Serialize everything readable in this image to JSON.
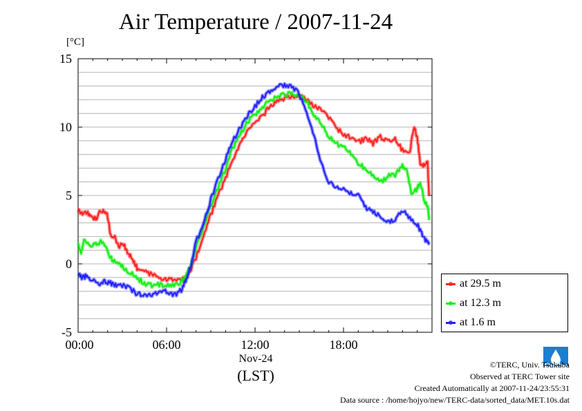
{
  "header": {
    "title": "Air Temperature / 2007-11-24",
    "unit": "[°C]"
  },
  "xaxis": {
    "date_label": "Nov-24",
    "tz_label": "(LST)"
  },
  "legend": [
    {
      "label": "at 29.5 m",
      "color": "#ff2020"
    },
    {
      "label": "at 12.3 m",
      "color": "#10ee10"
    },
    {
      "label": "at 1.6 m",
      "color": "#2020ff"
    }
  ],
  "credits": {
    "copyright": "©TERC, Univ. Tsukuba",
    "site": "Observed at TERC Tower site",
    "created": "Created Automatically at 2007-11-24/23:55:31",
    "source": "Data source : /home/hojyo/new/TERC-data/sorted_data/MET.10s.dat"
  },
  "chart_data": {
    "type": "line",
    "title": "Air Temperature / 2007-11-24",
    "ylabel": "[°C]",
    "xlabel": "Nov-24 (LST)",
    "xlim": [
      0,
      24
    ],
    "ylim": [
      -5,
      15
    ],
    "x_ticks": [
      0,
      6,
      12,
      18
    ],
    "x_tick_labels": [
      "00:00",
      "06:00",
      "12:00",
      "18:00"
    ],
    "y_ticks": [
      -5,
      0,
      5,
      10,
      15
    ],
    "y_tick_labels": [
      "-5",
      "0",
      "5",
      "10",
      "15"
    ],
    "grid": true,
    "legend_position": "right",
    "series": [
      {
        "name": "at 29.5 m",
        "color": "#ff2020",
        "points": [
          [
            0,
            3.9
          ],
          [
            0.3,
            3.7
          ],
          [
            0.6,
            3.8
          ],
          [
            0.9,
            3.4
          ],
          [
            1.2,
            3.3
          ],
          [
            1.5,
            3.8
          ],
          [
            1.8,
            3.8
          ],
          [
            2.0,
            3.5
          ],
          [
            2.2,
            2.1
          ],
          [
            2.5,
            1.9
          ],
          [
            2.8,
            1.3
          ],
          [
            3.1,
            1.4
          ],
          [
            3.4,
            0.8
          ],
          [
            3.7,
            0.3
          ],
          [
            4.0,
            -0.3
          ],
          [
            4.5,
            -0.6
          ],
          [
            5.0,
            -0.8
          ],
          [
            5.5,
            -1.0
          ],
          [
            6.0,
            -1.1
          ],
          [
            6.5,
            -1.2
          ],
          [
            7.0,
            -1.2
          ],
          [
            7.3,
            -1.0
          ],
          [
            7.6,
            -0.5
          ],
          [
            8.0,
            0.5
          ],
          [
            8.5,
            2.0
          ],
          [
            9.0,
            3.6
          ],
          [
            9.5,
            5.0
          ],
          [
            10.0,
            6.3
          ],
          [
            10.5,
            7.7
          ],
          [
            11.0,
            8.8
          ],
          [
            11.5,
            9.7
          ],
          [
            12.0,
            10.3
          ],
          [
            12.5,
            10.8
          ],
          [
            13.0,
            11.5
          ],
          [
            13.5,
            11.9
          ],
          [
            14.0,
            12.1
          ],
          [
            14.5,
            12.3
          ],
          [
            15.0,
            12.2
          ],
          [
            15.5,
            12.1
          ],
          [
            16.0,
            11.5
          ],
          [
            16.5,
            11.3
          ],
          [
            17.0,
            10.7
          ],
          [
            17.5,
            9.9
          ],
          [
            18.0,
            9.5
          ],
          [
            18.5,
            9.2
          ],
          [
            19.0,
            8.9
          ],
          [
            19.5,
            9.2
          ],
          [
            20.0,
            8.8
          ],
          [
            20.5,
            9.3
          ],
          [
            21.0,
            9.0
          ],
          [
            21.5,
            9.2
          ],
          [
            22.0,
            8.3
          ],
          [
            22.5,
            8.3
          ],
          [
            22.8,
            10.1
          ],
          [
            23.0,
            9.2
          ],
          [
            23.2,
            7.3
          ],
          [
            23.5,
            7.2
          ],
          [
            23.7,
            7.5
          ],
          [
            23.8,
            5.0
          ]
        ]
      },
      {
        "name": "at 12.3 m",
        "color": "#10ee10",
        "points": [
          [
            0,
            1.5
          ],
          [
            0.2,
            0.8
          ],
          [
            0.4,
            1.8
          ],
          [
            0.8,
            1.3
          ],
          [
            1.2,
            1.5
          ],
          [
            1.6,
            1.6
          ],
          [
            2.0,
            0.9
          ],
          [
            2.3,
            0.3
          ],
          [
            2.6,
            0.1
          ],
          [
            3.0,
            -0.2
          ],
          [
            3.5,
            -0.6
          ],
          [
            4.0,
            -1.1
          ],
          [
            4.5,
            -1.4
          ],
          [
            5.0,
            -1.6
          ],
          [
            5.5,
            -1.5
          ],
          [
            6.0,
            -1.6
          ],
          [
            6.5,
            -1.6
          ],
          [
            7.0,
            -1.3
          ],
          [
            7.3,
            -0.9
          ],
          [
            7.6,
            -0.2
          ],
          [
            8.0,
            1.1
          ],
          [
            8.5,
            2.8
          ],
          [
            9.0,
            4.2
          ],
          [
            9.5,
            5.6
          ],
          [
            10.0,
            7.0
          ],
          [
            10.5,
            8.5
          ],
          [
            11.0,
            9.5
          ],
          [
            11.5,
            10.4
          ],
          [
            12.0,
            10.9
          ],
          [
            12.5,
            11.5
          ],
          [
            13.0,
            11.9
          ],
          [
            13.5,
            12.3
          ],
          [
            14.0,
            12.4
          ],
          [
            14.5,
            12.4
          ],
          [
            15.0,
            12.3
          ],
          [
            15.5,
            11.9
          ],
          [
            16.0,
            10.9
          ],
          [
            16.5,
            10.2
          ],
          [
            17.0,
            9.3
          ],
          [
            17.5,
            8.8
          ],
          [
            18.0,
            8.6
          ],
          [
            18.5,
            8.0
          ],
          [
            19.0,
            7.3
          ],
          [
            19.5,
            7.0
          ],
          [
            20.0,
            6.4
          ],
          [
            20.5,
            6.0
          ],
          [
            21.0,
            6.4
          ],
          [
            21.5,
            6.5
          ],
          [
            22.0,
            7.2
          ],
          [
            22.3,
            6.9
          ],
          [
            22.6,
            5.2
          ],
          [
            23.0,
            5.5
          ],
          [
            23.2,
            6.0
          ],
          [
            23.5,
            4.6
          ],
          [
            23.7,
            4.3
          ],
          [
            23.8,
            3.2
          ]
        ]
      },
      {
        "name": "at 1.6 m",
        "color": "#2020ff",
        "points": [
          [
            0,
            -0.8
          ],
          [
            0.3,
            -1.0
          ],
          [
            0.6,
            -0.9
          ],
          [
            1.0,
            -1.2
          ],
          [
            1.4,
            -1.5
          ],
          [
            1.8,
            -1.3
          ],
          [
            2.2,
            -1.4
          ],
          [
            2.6,
            -1.6
          ],
          [
            3.0,
            -1.6
          ],
          [
            3.5,
            -1.8
          ],
          [
            4.0,
            -2.2
          ],
          [
            4.5,
            -2.3
          ],
          [
            5.0,
            -2.2
          ],
          [
            5.5,
            -2.1
          ],
          [
            6.0,
            -2.0
          ],
          [
            6.5,
            -2.3
          ],
          [
            7.0,
            -1.9
          ],
          [
            7.3,
            -1.2
          ],
          [
            7.6,
            -0.3
          ],
          [
            8.0,
            1.6
          ],
          [
            8.5,
            3.0
          ],
          [
            9.0,
            4.7
          ],
          [
            9.5,
            6.2
          ],
          [
            10.0,
            7.7
          ],
          [
            10.5,
            9.0
          ],
          [
            11.0,
            10.0
          ],
          [
            11.5,
            10.9
          ],
          [
            12.0,
            11.5
          ],
          [
            12.5,
            12.2
          ],
          [
            13.0,
            12.6
          ],
          [
            13.5,
            13.0
          ],
          [
            14.0,
            13.1
          ],
          [
            14.5,
            13.0
          ],
          [
            15.0,
            12.4
          ],
          [
            15.5,
            11.2
          ],
          [
            16.0,
            9.3
          ],
          [
            16.5,
            7.3
          ],
          [
            17.0,
            6.0
          ],
          [
            17.5,
            5.6
          ],
          [
            18.0,
            5.4
          ],
          [
            18.5,
            5.2
          ],
          [
            19.0,
            5.1
          ],
          [
            19.5,
            4.1
          ],
          [
            20.0,
            3.8
          ],
          [
            20.5,
            3.5
          ],
          [
            21.0,
            3.1
          ],
          [
            21.5,
            3.3
          ],
          [
            22.0,
            3.9
          ],
          [
            22.5,
            3.4
          ],
          [
            23.0,
            2.9
          ],
          [
            23.3,
            2.2
          ],
          [
            23.6,
            1.7
          ],
          [
            23.8,
            1.6
          ]
        ]
      }
    ]
  }
}
